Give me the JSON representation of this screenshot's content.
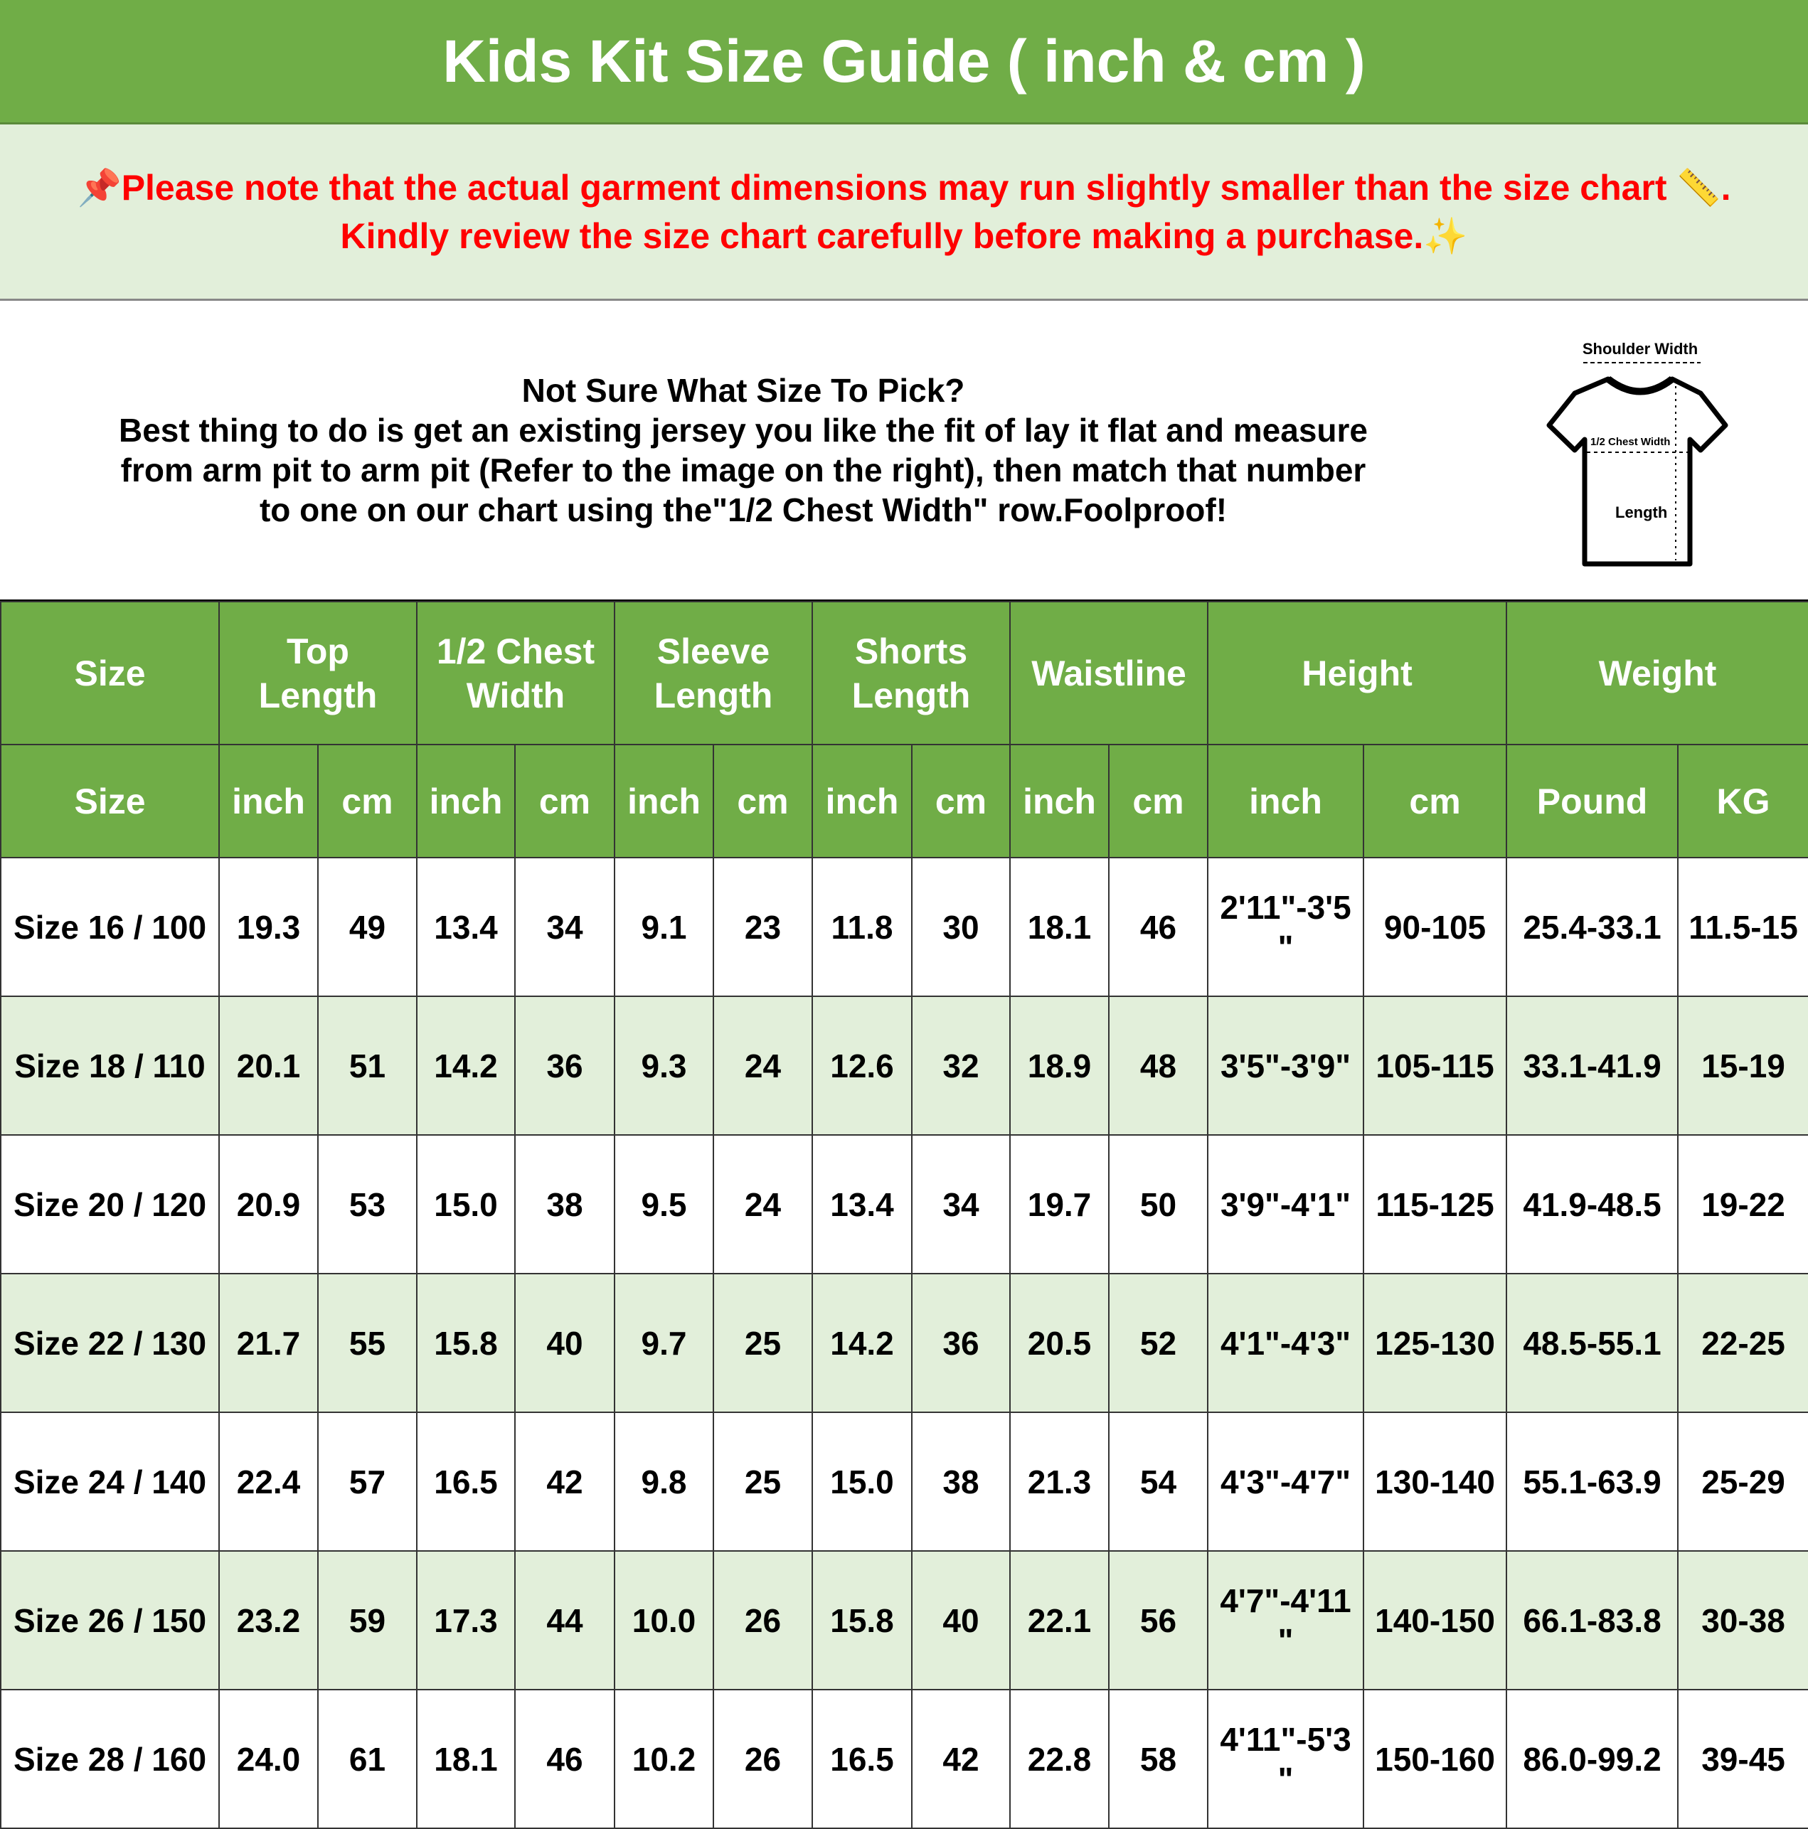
{
  "title": "Kids Kit Size Guide ( inch & cm )",
  "notice": {
    "line1": "📌Please note that the actual garment dimensions may run slightly smaller than the size chart 📏.",
    "line2": "Kindly review the size chart carefully before making a purchase.✨",
    "color": "#ff0000"
  },
  "info": {
    "heading": "Not Sure What Size To Pick?",
    "line1": "Best thing to do is get an existing jersey you like the fit of lay it flat and measure",
    "line2": "from arm pit to arm pit (Refer to the image on the right), then match that number",
    "line3": "to one on our chart using the\"1/2 Chest Width\" row.Foolproof!"
  },
  "diagram": {
    "shoulder": "Shoulder Width",
    "chest": "1/2 Chest Width",
    "length": "Length"
  },
  "header": [
    "Size",
    "Top Length",
    "1/2 Chest Width",
    "Sleeve Length",
    "Shorts Length",
    "Waistline",
    "Height",
    "Weight"
  ],
  "subheader": [
    "Size",
    "inch",
    "cm",
    "inch",
    "cm",
    "inch",
    "cm",
    "inch",
    "cm",
    "inch",
    "cm",
    "inch",
    "cm",
    "Pound",
    "KG"
  ],
  "rows": [
    [
      "Size 16 / 100",
      "19.3",
      "49",
      "13.4",
      "34",
      "9.1",
      "23",
      "11.8",
      "30",
      "18.1",
      "46",
      "2'11\"-3'5\"",
      "90-105",
      "25.4-33.1",
      "11.5-15"
    ],
    [
      "Size 18 / 110",
      "20.1",
      "51",
      "14.2",
      "36",
      "9.3",
      "24",
      "12.6",
      "32",
      "18.9",
      "48",
      "3'5\"-3'9\"",
      "105-115",
      "33.1-41.9",
      "15-19"
    ],
    [
      "Size 20 / 120",
      "20.9",
      "53",
      "15.0",
      "38",
      "9.5",
      "24",
      "13.4",
      "34",
      "19.7",
      "50",
      "3'9\"-4'1\"",
      "115-125",
      "41.9-48.5",
      "19-22"
    ],
    [
      "Size 22 / 130",
      "21.7",
      "55",
      "15.8",
      "40",
      "9.7",
      "25",
      "14.2",
      "36",
      "20.5",
      "52",
      "4'1\"-4'3\"",
      "125-130",
      "48.5-55.1",
      "22-25"
    ],
    [
      "Size 24 / 140",
      "22.4",
      "57",
      "16.5",
      "42",
      "9.8",
      "25",
      "15.0",
      "38",
      "21.3",
      "54",
      "4'3\"-4'7\"",
      "130-140",
      "55.1-63.9",
      "25-29"
    ],
    [
      "Size 26 / 150",
      "23.2",
      "59",
      "17.3",
      "44",
      "10.0",
      "26",
      "15.8",
      "40",
      "22.1",
      "56",
      "4'7\"-4'11\"",
      "140-150",
      "66.1-83.8",
      "30-38"
    ],
    [
      "Size 28 / 160",
      "24.0",
      "61",
      "18.1",
      "46",
      "10.2",
      "26",
      "16.5",
      "42",
      "22.8",
      "58",
      "4'11\"-5'3\"",
      "150-160",
      "86.0-99.2",
      "39-45"
    ]
  ],
  "colors": {
    "header_green": "#70ad47",
    "alt_row": "#e2efda"
  }
}
